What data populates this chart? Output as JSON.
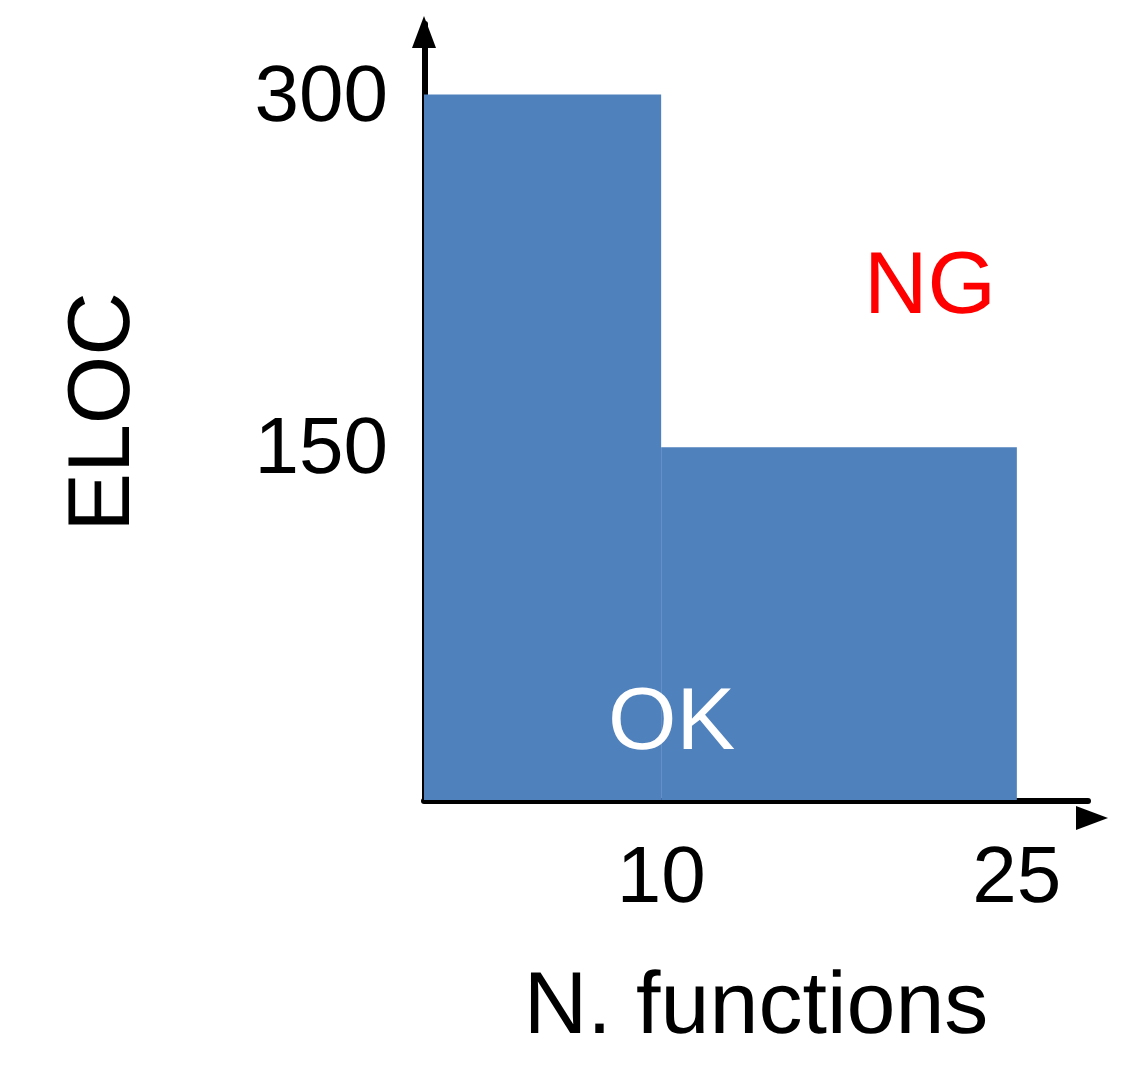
{
  "chart_data": {
    "type": "histogram",
    "xlabel": "N. functions",
    "ylabel": "ELOC",
    "bins": [
      0,
      10,
      25
    ],
    "values": [
      300,
      150
    ],
    "color": "#4f81bd",
    "xlim": [
      0,
      28
    ],
    "ylim": [
      0,
      330
    ],
    "xticks": [
      10,
      25
    ],
    "yticks": [
      150,
      300
    ],
    "grid": false,
    "annotations": [
      "OK",
      "NG"
    ]
  }
}
